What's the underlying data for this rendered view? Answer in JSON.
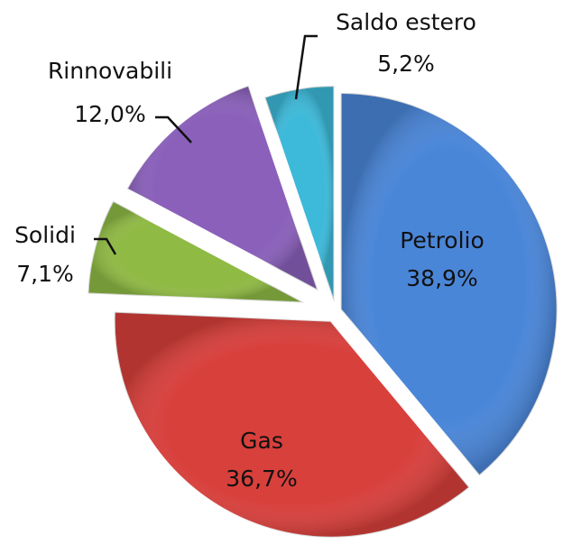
{
  "chart_data": {
    "type": "pie",
    "categories": [
      "Petrolio",
      "Gas",
      "Solidi",
      "Rinnovabili",
      "Saldo estero"
    ],
    "values": [
      38.9,
      36.7,
      7.1,
      12.0,
      5.2
    ],
    "value_labels": [
      "38,9%",
      "36,7%",
      "7,1%",
      "12,0%",
      "5,2%"
    ],
    "colors": [
      "#4a86d8",
      "#d8403c",
      "#8fba44",
      "#8a60ba",
      "#3db9d9"
    ]
  }
}
